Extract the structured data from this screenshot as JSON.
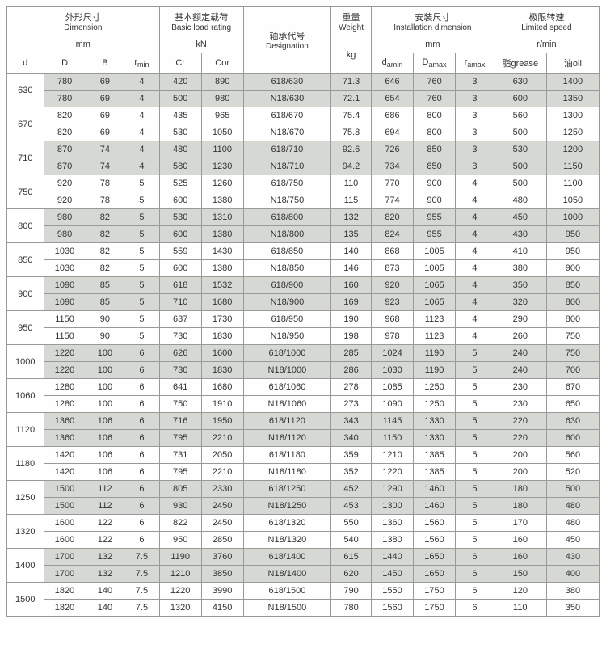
{
  "headers": {
    "dimension": {
      "cn": "外形尺寸",
      "en": "Dimension",
      "unit": "mm"
    },
    "load": {
      "cn": "基本额定载荷",
      "en": "Basic load rating",
      "unit": "kN"
    },
    "designation": {
      "cn": "轴承代号",
      "en": "Designation"
    },
    "weight": {
      "cn": "重量",
      "en": "Weight",
      "unit": "kg"
    },
    "install": {
      "cn": "安装尺寸",
      "en": "Installation dimension",
      "unit": "mm"
    },
    "speed": {
      "cn": "极限转速",
      "en": "Limited speed",
      "unit": "r/min"
    },
    "cols": {
      "d": "d",
      "D": "D",
      "B": "B",
      "rmin": "r",
      "rmin_sub": "min",
      "Cr": "Cr",
      "Cor": "Cor",
      "damin": "d",
      "damin_sub": "amin",
      "Damax": "D",
      "Damax_sub": "amax",
      "ramax": "r",
      "ramax_sub": "amax",
      "grease": "脂grease",
      "oil": "油oil"
    }
  },
  "groups": [
    {
      "d": "630",
      "shaded": true,
      "rows": [
        [
          "780",
          "69",
          "4",
          "420",
          "890",
          "618/630",
          "71.3",
          "646",
          "760",
          "3",
          "630",
          "1400"
        ],
        [
          "780",
          "69",
          "4",
          "500",
          "980",
          "N18/630",
          "72.1",
          "654",
          "760",
          "3",
          "600",
          "1350"
        ]
      ]
    },
    {
      "d": "670",
      "shaded": false,
      "rows": [
        [
          "820",
          "69",
          "4",
          "435",
          "965",
          "618/670",
          "75.4",
          "686",
          "800",
          "3",
          "560",
          "1300"
        ],
        [
          "820",
          "69",
          "4",
          "530",
          "1050",
          "N18/670",
          "75.8",
          "694",
          "800",
          "3",
          "500",
          "1250"
        ]
      ]
    },
    {
      "d": "710",
      "shaded": true,
      "rows": [
        [
          "870",
          "74",
          "4",
          "480",
          "1100",
          "618/710",
          "92.6",
          "726",
          "850",
          "3",
          "530",
          "1200"
        ],
        [
          "870",
          "74",
          "4",
          "580",
          "1230",
          "N18/710",
          "94.2",
          "734",
          "850",
          "3",
          "500",
          "1150"
        ]
      ]
    },
    {
      "d": "750",
      "shaded": false,
      "rows": [
        [
          "920",
          "78",
          "5",
          "525",
          "1260",
          "618/750",
          "110",
          "770",
          "900",
          "4",
          "500",
          "1100"
        ],
        [
          "920",
          "78",
          "5",
          "600",
          "1380",
          "N18/750",
          "115",
          "774",
          "900",
          "4",
          "480",
          "1050"
        ]
      ]
    },
    {
      "d": "800",
      "shaded": true,
      "rows": [
        [
          "980",
          "82",
          "5",
          "530",
          "1310",
          "618/800",
          "132",
          "820",
          "955",
          "4",
          "450",
          "1000"
        ],
        [
          "980",
          "82",
          "5",
          "600",
          "1380",
          "N18/800",
          "135",
          "824",
          "955",
          "4",
          "430",
          "950"
        ]
      ]
    },
    {
      "d": "850",
      "shaded": false,
      "rows": [
        [
          "1030",
          "82",
          "5",
          "559",
          "1430",
          "618/850",
          "140",
          "868",
          "1005",
          "4",
          "410",
          "950"
        ],
        [
          "1030",
          "82",
          "5",
          "600",
          "1380",
          "N18/850",
          "146",
          "873",
          "1005",
          "4",
          "380",
          "900"
        ]
      ]
    },
    {
      "d": "900",
      "shaded": true,
      "rows": [
        [
          "1090",
          "85",
          "5",
          "618",
          "1532",
          "618/900",
          "160",
          "920",
          "1065",
          "4",
          "350",
          "850"
        ],
        [
          "1090",
          "85",
          "5",
          "710",
          "1680",
          "N18/900",
          "169",
          "923",
          "1065",
          "4",
          "320",
          "800"
        ]
      ]
    },
    {
      "d": "950",
      "shaded": false,
      "rows": [
        [
          "1150",
          "90",
          "5",
          "637",
          "1730",
          "618/950",
          "190",
          "968",
          "1123",
          "4",
          "290",
          "800"
        ],
        [
          "1150",
          "90",
          "5",
          "730",
          "1830",
          "N18/950",
          "198",
          "978",
          "1123",
          "4",
          "260",
          "750"
        ]
      ]
    },
    {
      "d": "1000",
      "shaded": true,
      "rows": [
        [
          "1220",
          "100",
          "6",
          "626",
          "1600",
          "618/1000",
          "285",
          "1024",
          "1190",
          "5",
          "240",
          "750"
        ],
        [
          "1220",
          "100",
          "6",
          "730",
          "1830",
          "N18/1000",
          "286",
          "1030",
          "1190",
          "5",
          "240",
          "700"
        ]
      ]
    },
    {
      "d": "1060",
      "shaded": false,
      "rows": [
        [
          "1280",
          "100",
          "6",
          "641",
          "1680",
          "618/1060",
          "278",
          "1085",
          "1250",
          "5",
          "230",
          "670"
        ],
        [
          "1280",
          "100",
          "6",
          "750",
          "1910",
          "N18/1060",
          "273",
          "1090",
          "1250",
          "5",
          "230",
          "650"
        ]
      ]
    },
    {
      "d": "1120",
      "shaded": true,
      "rows": [
        [
          "1360",
          "106",
          "6",
          "716",
          "1950",
          "618/1120",
          "343",
          "1145",
          "1330",
          "5",
          "220",
          "630"
        ],
        [
          "1360",
          "106",
          "6",
          "795",
          "2210",
          "N18/1120",
          "340",
          "1150",
          "1330",
          "5",
          "220",
          "600"
        ]
      ]
    },
    {
      "d": "1180",
      "shaded": false,
      "rows": [
        [
          "1420",
          "106",
          "6",
          "731",
          "2050",
          "618/1180",
          "359",
          "1210",
          "1385",
          "5",
          "200",
          "560"
        ],
        [
          "1420",
          "106",
          "6",
          "795",
          "2210",
          "N18/1180",
          "352",
          "1220",
          "1385",
          "5",
          "200",
          "520"
        ]
      ]
    },
    {
      "d": "1250",
      "shaded": true,
      "rows": [
        [
          "1500",
          "112",
          "6",
          "805",
          "2330",
          "618/1250",
          "452",
          "1290",
          "1460",
          "5",
          "180",
          "500"
        ],
        [
          "1500",
          "112",
          "6",
          "930",
          "2450",
          "N18/1250",
          "453",
          "1300",
          "1460",
          "5",
          "180",
          "480"
        ]
      ]
    },
    {
      "d": "1320",
      "shaded": false,
      "rows": [
        [
          "1600",
          "122",
          "6",
          "822",
          "2450",
          "618/1320",
          "550",
          "1360",
          "1560",
          "5",
          "170",
          "480"
        ],
        [
          "1600",
          "122",
          "6",
          "950",
          "2850",
          "N18/1320",
          "540",
          "1380",
          "1560",
          "5",
          "160",
          "450"
        ]
      ]
    },
    {
      "d": "1400",
      "shaded": true,
      "rows": [
        [
          "1700",
          "132",
          "7.5",
          "1190",
          "3760",
          "618/1400",
          "615",
          "1440",
          "1650",
          "6",
          "160",
          "430"
        ],
        [
          "1700",
          "132",
          "7.5",
          "1210",
          "3850",
          "N18/1400",
          "620",
          "1450",
          "1650",
          "6",
          "150",
          "400"
        ]
      ]
    },
    {
      "d": "1500",
      "shaded": false,
      "rows": [
        [
          "1820",
          "140",
          "7.5",
          "1220",
          "3990",
          "618/1500",
          "790",
          "1550",
          "1750",
          "6",
          "120",
          "380"
        ],
        [
          "1820",
          "140",
          "7.5",
          "1320",
          "4150",
          "N18/1500",
          "780",
          "1560",
          "1750",
          "6",
          "110",
          "350"
        ]
      ]
    }
  ]
}
